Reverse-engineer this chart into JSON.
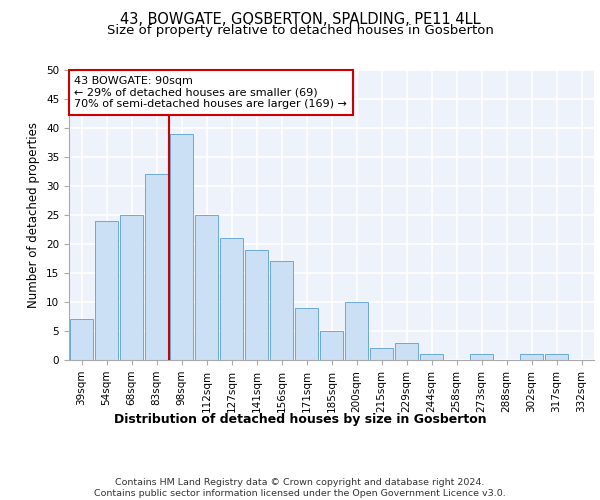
{
  "title": "43, BOWGATE, GOSBERTON, SPALDING, PE11 4LL",
  "subtitle": "Size of property relative to detached houses in Gosberton",
  "xlabel": "Distribution of detached houses by size in Gosberton",
  "ylabel": "Number of detached properties",
  "categories": [
    "39sqm",
    "54sqm",
    "68sqm",
    "83sqm",
    "98sqm",
    "112sqm",
    "127sqm",
    "141sqm",
    "156sqm",
    "171sqm",
    "185sqm",
    "200sqm",
    "215sqm",
    "229sqm",
    "244sqm",
    "258sqm",
    "273sqm",
    "288sqm",
    "302sqm",
    "317sqm",
    "332sqm"
  ],
  "values": [
    7,
    24,
    25,
    32,
    39,
    25,
    21,
    19,
    17,
    9,
    5,
    10,
    2,
    3,
    1,
    0,
    1,
    0,
    1,
    1,
    0
  ],
  "bar_color": "#cce0f5",
  "bar_edge_color": "#6aaad4",
  "vline_color": "#cc0000",
  "vline_x_index": 3.5,
  "annotation_text": "43 BOWGATE: 90sqm\n← 29% of detached houses are smaller (69)\n70% of semi-detached houses are larger (169) →",
  "annotation_box_color": "white",
  "annotation_box_edge": "#cc0000",
  "ylim": [
    0,
    50
  ],
  "yticks": [
    0,
    5,
    10,
    15,
    20,
    25,
    30,
    35,
    40,
    45,
    50
  ],
  "footer_line1": "Contains HM Land Registry data © Crown copyright and database right 2024.",
  "footer_line2": "Contains public sector information licensed under the Open Government Licence v3.0.",
  "background_color": "#eef2fa",
  "grid_color": "white",
  "title_fontsize": 10.5,
  "subtitle_fontsize": 9.5,
  "ylabel_fontsize": 8.5,
  "xlabel_fontsize": 9,
  "tick_fontsize": 7.5,
  "footer_fontsize": 6.8,
  "ann_fontsize": 8
}
